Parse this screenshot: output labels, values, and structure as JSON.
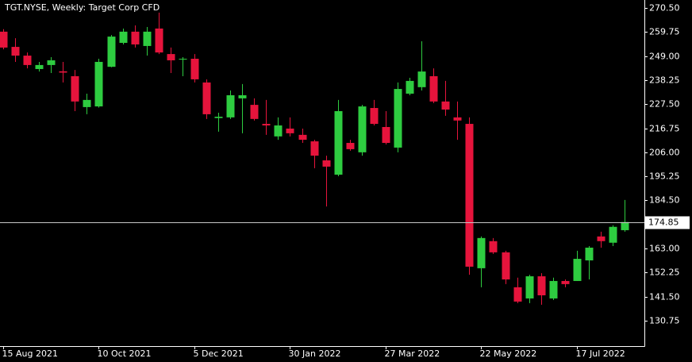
{
  "chart_data": {
    "type": "candlestick",
    "title": "TGT.NYSE, Weekly:  Target Corp CFD",
    "categories": [
      "15 Aug 2021",
      null,
      null,
      null,
      null,
      null,
      null,
      null,
      "10 Oct 2021",
      null,
      null,
      null,
      null,
      null,
      null,
      null,
      "5 Dec 2021",
      null,
      null,
      null,
      null,
      null,
      null,
      null,
      "30 Jan 2022",
      null,
      null,
      null,
      null,
      null,
      null,
      null,
      "27 Mar 2022",
      null,
      null,
      null,
      null,
      null,
      null,
      null,
      "22 May 2022",
      null,
      null,
      null,
      null,
      null,
      null,
      null,
      "17 Jul 2022",
      null,
      null,
      null,
      null
    ],
    "open": [
      259.9,
      253.1,
      249.2,
      243.2,
      245.0,
      242.2,
      240.0,
      226.2,
      226.5,
      244.2,
      254.9,
      259.9,
      253.5,
      261.3,
      249.9,
      247.5,
      247.8,
      237.2,
      221.3,
      221.6,
      230.1,
      227.2,
      218.7,
      213.1,
      216.6,
      213.8,
      210.9,
      202.4,
      196.0,
      210.2,
      206.0,
      225.8,
      217.3,
      208.1,
      232.2,
      235.1,
      240.0,
      228.7,
      221.6,
      218.7,
      154.2,
      166.3,
      161.3,
      145.7,
      140.7,
      150.6,
      140.7,
      148.5,
      148.5,
      157.7,
      168.4,
      165.6,
      171.2
    ],
    "high": [
      261.0,
      257.0,
      250.6,
      246.4,
      248.5,
      246.4,
      242.8,
      232.2,
      247.8,
      258.4,
      261.3,
      262.7,
      262.0,
      268.4,
      252.8,
      248.5,
      249.9,
      238.6,
      223.7,
      233.6,
      236.5,
      230.1,
      229.4,
      221.6,
      221.6,
      216.6,
      211.6,
      204.5,
      229.4,
      211.6,
      227.2,
      229.4,
      224.4,
      237.2,
      239.3,
      255.6,
      243.5,
      237.9,
      228.7,
      221.6,
      168.4,
      167.7,
      162.0,
      150.0,
      151.3,
      152.0,
      150.0,
      149.2,
      162.0,
      164.1,
      170.5,
      173.4,
      184.7
    ],
    "low": [
      252.0,
      246.4,
      243.5,
      242.1,
      241.4,
      237.2,
      224.4,
      223.0,
      226.0,
      244.0,
      254.2,
      252.8,
      249.2,
      249.9,
      241.4,
      240.0,
      237.2,
      220.9,
      215.2,
      220.9,
      214.5,
      220.2,
      213.8,
      211.6,
      213.1,
      210.2,
      198.9,
      181.8,
      195.3,
      206.7,
      204.5,
      218.0,
      209.5,
      206.0,
      231.5,
      233.6,
      228.0,
      222.3,
      211.6,
      151.3,
      145.7,
      160.6,
      147.1,
      138.6,
      138.6,
      137.9,
      140.0,
      145.7,
      148.5,
      149.2,
      163.4,
      164.1,
      170.5
    ],
    "close": [
      252.8,
      249.2,
      245.0,
      245.0,
      247.1,
      241.6,
      228.7,
      229.4,
      246.4,
      257.7,
      259.9,
      254.2,
      259.9,
      250.6,
      247.1,
      247.8,
      238.6,
      223.0,
      221.9,
      231.5,
      231.5,
      220.9,
      218.0,
      218.0,
      214.5,
      211.6,
      204.5,
      199.6,
      224.4,
      207.4,
      226.5,
      218.7,
      210.2,
      234.3,
      237.9,
      242.1,
      228.7,
      225.1,
      220.2,
      154.9,
      167.7,
      161.3,
      149.2,
      139.3,
      150.6,
      142.1,
      148.5,
      147.1,
      158.4,
      163.4,
      166.3,
      172.7,
      174.85
    ],
    "up_color": "#2ecc40",
    "down_color": "#e6143c",
    "current_price": 174.85,
    "ylim": [
      119.4,
      274.05
    ],
    "yticks": [
      {
        "value": 270.5,
        "label": "270.50"
      },
      259.75,
      {
        "value": 249,
        "label": "249.00"
      },
      238.25,
      {
        "value": 227.5,
        "label": "227.50"
      },
      216.75,
      {
        "value": 206,
        "label": "206.00"
      },
      195.25,
      {
        "value": 184.5,
        "label": "184.50"
      },
      {
        "value": 163,
        "label": "163.00"
      },
      152.25,
      {
        "value": 141.5,
        "label": "141.50"
      },
      130.75
    ]
  }
}
